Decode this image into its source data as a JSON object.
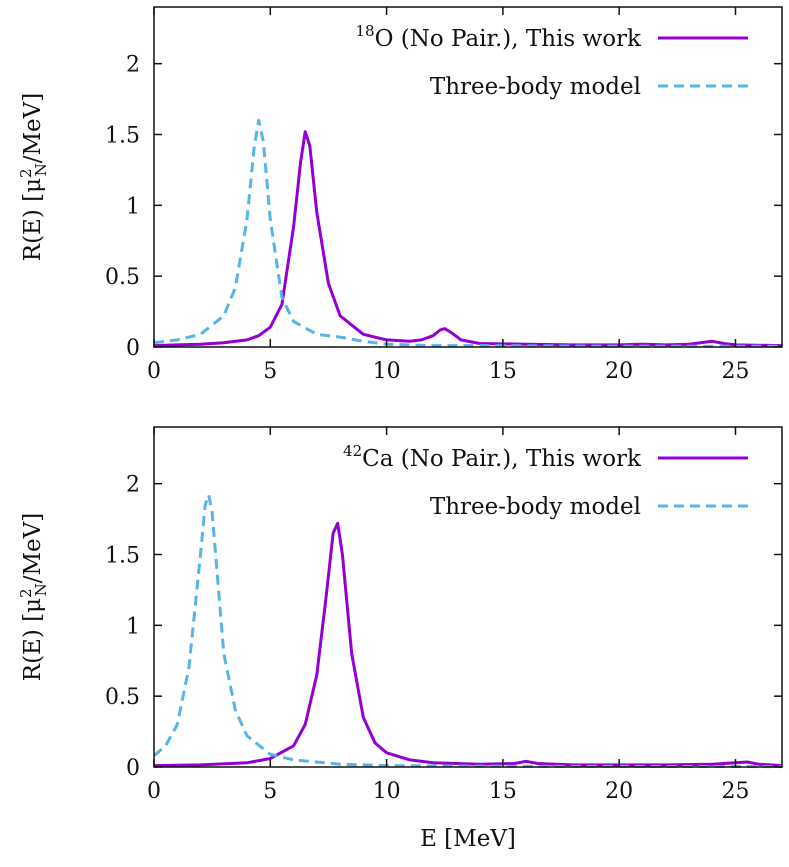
{
  "xlabel": "E  [MeV]",
  "ylabel": {
    "prefix": "R(E)  [μ",
    "sup": "2",
    "sub": "N",
    "suffix": "/MeV]"
  },
  "colors": {
    "this_work": "#9400d3",
    "three_body": "#56b4e9",
    "axis": "#111111"
  },
  "chart_data": [
    {
      "type": "line",
      "xlim": [
        0,
        27
      ],
      "ylim": [
        0,
        2.4
      ],
      "xticks": [
        0,
        5,
        10,
        15,
        20,
        25
      ],
      "yticks": [
        0,
        0.5,
        1,
        1.5,
        2
      ],
      "ytick_labels": [
        "0",
        "0.5",
        "1",
        "1.5",
        "2"
      ],
      "grid": false,
      "legend_position": "top-right",
      "series": [
        {
          "name": "O (No Pair.), This work",
          "name_sup": "18",
          "style": "solid",
          "x": [
            0,
            1,
            2,
            3,
            4,
            4.5,
            5,
            5.5,
            6,
            6.3,
            6.5,
            6.7,
            7,
            7.5,
            8,
            9,
            10,
            11,
            11.5,
            12,
            12.3,
            12.5,
            12.8,
            13.2,
            14,
            16,
            18,
            20,
            21,
            22,
            23,
            23.5,
            24,
            24.5,
            25,
            27
          ],
          "y": [
            0.01,
            0.015,
            0.02,
            0.03,
            0.05,
            0.08,
            0.14,
            0.3,
            0.85,
            1.3,
            1.52,
            1.42,
            0.95,
            0.45,
            0.22,
            0.09,
            0.05,
            0.04,
            0.05,
            0.08,
            0.12,
            0.13,
            0.1,
            0.05,
            0.025,
            0.02,
            0.015,
            0.015,
            0.02,
            0.015,
            0.02,
            0.03,
            0.04,
            0.025,
            0.015,
            0.01
          ]
        },
        {
          "name": "Three-body model",
          "style": "dashed",
          "x": [
            0,
            1,
            2,
            3,
            3.5,
            4,
            4.3,
            4.5,
            4.7,
            5,
            5.5,
            6,
            7,
            8,
            9,
            10,
            11,
            12,
            14,
            16,
            20,
            27
          ],
          "y": [
            0.03,
            0.05,
            0.09,
            0.22,
            0.42,
            0.9,
            1.4,
            1.6,
            1.45,
            0.9,
            0.35,
            0.18,
            0.09,
            0.07,
            0.04,
            0.02,
            0.015,
            0.01,
            0.01,
            0.008,
            0.005,
            0.005
          ]
        }
      ]
    },
    {
      "type": "line",
      "xlim": [
        0,
        27
      ],
      "ylim": [
        0,
        2.4
      ],
      "xticks": [
        0,
        5,
        10,
        15,
        20,
        25
      ],
      "yticks": [
        0,
        0.5,
        1,
        1.5,
        2
      ],
      "ytick_labels": [
        "0",
        "0.5",
        "1",
        "1.5",
        "2"
      ],
      "grid": false,
      "legend_position": "top-right",
      "series": [
        {
          "name": "Ca (No Pair.), This work",
          "name_sup": "42",
          "style": "solid",
          "x": [
            0,
            2,
            4,
            5,
            6,
            6.5,
            7,
            7.4,
            7.7,
            7.9,
            8.1,
            8.5,
            9,
            9.5,
            10,
            11,
            12,
            14,
            15.5,
            16,
            16.5,
            18,
            20,
            22,
            24,
            25.5,
            26,
            27
          ],
          "y": [
            0.01,
            0.015,
            0.03,
            0.06,
            0.15,
            0.3,
            0.65,
            1.2,
            1.65,
            1.72,
            1.5,
            0.8,
            0.35,
            0.17,
            0.1,
            0.05,
            0.03,
            0.02,
            0.025,
            0.04,
            0.025,
            0.015,
            0.015,
            0.015,
            0.02,
            0.035,
            0.02,
            0.01
          ]
        },
        {
          "name": "Three-body model",
          "style": "dashed",
          "x": [
            0,
            0.5,
            1,
            1.5,
            2,
            2.2,
            2.35,
            2.5,
            2.7,
            3,
            3.5,
            4,
            5,
            6,
            8,
            10,
            15,
            27
          ],
          "y": [
            0.08,
            0.15,
            0.3,
            0.7,
            1.5,
            1.85,
            1.92,
            1.8,
            1.4,
            0.8,
            0.4,
            0.22,
            0.09,
            0.05,
            0.02,
            0.01,
            0.005,
            0.003
          ]
        }
      ]
    }
  ]
}
